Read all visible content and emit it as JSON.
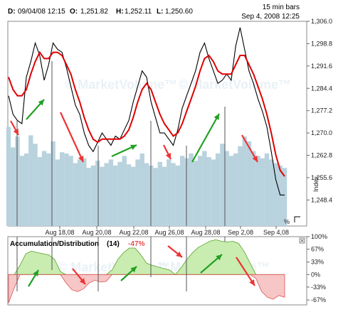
{
  "header": {
    "date_label": "D:",
    "date_value": "09/04/08 12:15",
    "open_label": "O:",
    "open_value": "1,251.82",
    "high_label": "H:",
    "high_value": "1,252.11",
    "low_label": "L:",
    "low_value": "1,250.60",
    "interval": "15 min bars",
    "timestamp": "Sep 4, 2008 12:25"
  },
  "watermark": "© MarketVolume™",
  "colors": {
    "price": "#000000",
    "moving_average": "#e00000",
    "volume": "#b9d3de",
    "up_arrow": "#22a022",
    "down_arrow": "#ee3333",
    "ad_positive": "#c9ecb0",
    "ad_negative": "#f7c6c6",
    "vlines": "#555555"
  },
  "chart_data": [
    {
      "type": "line",
      "series": [
        {
          "values": [
            1282,
            1276,
            1274,
            1273,
            1288,
            1293,
            1299,
            1295,
            1287,
            1292,
            1299,
            1297,
            1296,
            1291,
            1285,
            1279,
            1276,
            1270,
            1266,
            1264,
            1267,
            1270,
            1268,
            1266,
            1269,
            1268,
            1271,
            1274,
            1280,
            1285,
            1290,
            1288,
            1280,
            1275,
            1270,
            1270,
            1268,
            1266,
            1271,
            1278,
            1282,
            1286,
            1290,
            1296,
            1299,
            1294,
            1290,
            1286,
            1287,
            1289,
            1287,
            1298,
            1304,
            1297,
            1290,
            1286,
            1281,
            1277,
            1272,
            1264,
            1255,
            1250,
            1250
          ]
        },
        {
          "values": [
            1288,
            1284,
            1282,
            1282,
            1284,
            1289,
            1293,
            1296,
            1294,
            1294,
            1296,
            1296,
            1295,
            1292,
            1289,
            1284,
            1280,
            1275,
            1271,
            1268,
            1267,
            1268,
            1268,
            1268,
            1268,
            1268,
            1269,
            1271,
            1275,
            1280,
            1284,
            1286,
            1284,
            1280,
            1276,
            1273,
            1271,
            1269,
            1270,
            1273,
            1277,
            1281,
            1285,
            1290,
            1294,
            1295,
            1293,
            1290,
            1289,
            1289,
            1289,
            1292,
            1295,
            1295,
            1292,
            1289,
            1285,
            1281,
            1276,
            1270,
            1263,
            1258,
            1256
          ]
        }
      ],
      "volume": [
        0.82,
        0.65,
        0.74,
        0.58,
        0.6,
        0.75,
        0.68,
        0.57,
        0.62,
        0.6,
        0.7,
        0.55,
        0.61,
        0.6,
        0.58,
        0.52,
        0.55,
        0.56,
        0.48,
        0.5,
        0.54,
        0.49,
        0.52,
        0.55,
        0.5,
        0.53,
        0.58,
        0.51,
        0.49,
        0.55,
        0.6,
        0.52,
        0.5,
        0.48,
        0.53,
        0.49,
        0.55,
        0.52,
        0.5,
        0.58,
        0.56,
        0.6,
        0.54,
        0.58,
        0.62,
        0.57,
        0.55,
        0.6,
        0.68,
        0.62,
        0.58,
        0.6,
        0.66,
        0.74,
        0.7,
        0.62,
        0.58,
        0.56,
        0.6,
        0.55,
        0.52,
        0.5,
        0.48
      ],
      "x_ticks": [
        "Aug 18,08",
        "Aug 20,08",
        "Aug 22,08",
        "Aug 26,08",
        "Aug 28,08",
        "Sep 2,08",
        "Sep 4,08"
      ],
      "y_ticks": [
        "1,306.0",
        "1,298.8",
        "1,291.6",
        "1,284.4",
        "1,277.2",
        "1,270.0",
        "1,262.8",
        "1,255.6",
        "1,248.4"
      ],
      "ylim": [
        1240,
        1306
      ],
      "ylabel": "Index",
      "corner_label": "%"
    },
    {
      "type": "area",
      "title": "Accumulation/Distribution",
      "period": "(14)",
      "current_value": "-47%",
      "values": [
        -75,
        -35,
        25,
        55,
        62,
        58,
        55,
        52,
        40,
        8,
        -22,
        -40,
        -45,
        -38,
        -22,
        -15,
        -20,
        -18,
        12,
        40,
        58,
        70,
        70,
        52,
        30,
        24,
        20,
        16,
        12,
        0,
        18,
        40,
        58,
        72,
        80,
        88,
        92,
        88,
        86,
        88,
        82,
        60,
        30,
        -10,
        -45,
        -60,
        -65,
        -55,
        -60
      ],
      "y_ticks": [
        "100%",
        "67%",
        "33%",
        "0%",
        "-33%",
        "-67%"
      ],
      "ylim": [
        -80,
        100
      ]
    }
  ]
}
